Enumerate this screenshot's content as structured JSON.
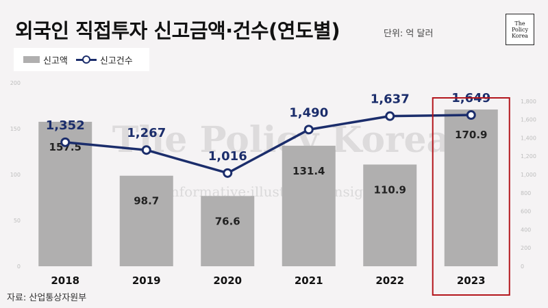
{
  "title": "외국인 직접투자 신고금액·건수(연도별)",
  "unit_label": "단위: 억 달러",
  "logo": {
    "line1": "The",
    "line2": "Policy",
    "line3": "Korea"
  },
  "watermark": {
    "main": "The Policy Korea",
    "tagline": "informative·illustrative·insightful"
  },
  "source": "자료: 산업통상자원부",
  "colors": {
    "bar": "#b0afaf",
    "line": "#1b2d6b",
    "highlight": "#b3151b"
  },
  "chart_data": {
    "type": "bar",
    "categories": [
      "2018",
      "2019",
      "2020",
      "2021",
      "2022",
      "2023"
    ],
    "series": [
      {
        "name": "신고액",
        "type": "bar",
        "axis": "left",
        "values": [
          157.5,
          98.7,
          76.6,
          131.4,
          110.9,
          170.9
        ],
        "labels": [
          "157.5",
          "98.7",
          "76.6",
          "131.4",
          "110.9",
          "170.9"
        ]
      },
      {
        "name": "신고건수",
        "type": "line",
        "axis": "right",
        "values": [
          1352,
          1267,
          1016,
          1490,
          1637,
          1649
        ],
        "labels": [
          "1,352",
          "1,267",
          "1,016",
          "1,490",
          "1,637",
          "1,649"
        ]
      }
    ],
    "y_left": {
      "range": [
        0,
        200
      ],
      "ticks": [
        "0",
        "50",
        "100",
        "150",
        "200"
      ]
    },
    "y_right": {
      "range": [
        0,
        2000
      ],
      "ticks": [
        "0",
        "200",
        "400",
        "600",
        "800",
        "1,000",
        "1,200",
        "1,400",
        "1,600",
        "1,800"
      ]
    },
    "highlight_category": "2023",
    "legend_position": "top-left",
    "grid": false
  }
}
